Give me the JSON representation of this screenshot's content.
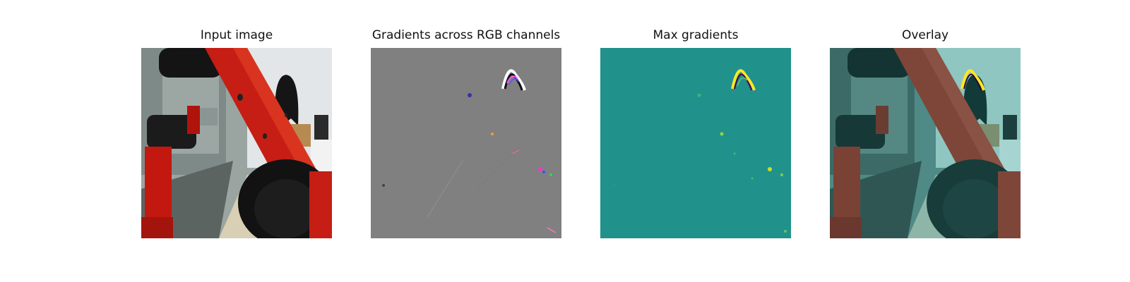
{
  "panels": [
    {
      "title": "Input image"
    },
    {
      "title": "Gradients across RGB channels"
    },
    {
      "title": "Max gradients"
    },
    {
      "title": "Overlay"
    }
  ],
  "colors": {
    "robot_red": "#c61e14",
    "gradient_gray": "#808080",
    "viridis_teal": "#21918c",
    "viridis_yellow": "#fde725",
    "overlay_teal": "#6fb7b2"
  }
}
